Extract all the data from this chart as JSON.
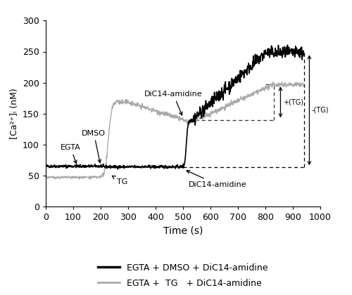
{
  "xlim": [
    0,
    1000
  ],
  "ylim": [
    0,
    300
  ],
  "xticks": [
    0,
    100,
    200,
    300,
    400,
    500,
    600,
    700,
    800,
    900,
    1000
  ],
  "yticks": [
    0,
    50,
    100,
    150,
    200,
    250,
    300
  ],
  "xlabel": "Time (s)",
  "ylabel": "[Ca²⁺]ᵢ (nM)",
  "black_color": "#000000",
  "grey_color": "#aaaaaa",
  "black_baseline": 63,
  "grey_plateau": 140,
  "black_peak": 248,
  "grey_peak": 197,
  "dash_black_x1": 500,
  "dash_black_x2": 940,
  "dash_grey_horiz_x1": 500,
  "dash_grey_horiz_x2": 830,
  "dash_peak_black_x1": 800,
  "dash_peak_black_x2": 940,
  "dash_peak_grey_x1": 800,
  "dash_peak_grey_x2": 830,
  "plus_tg_x": 855,
  "plus_tg_y_lo": 140,
  "plus_tg_y_hi": 197,
  "minus_tg_x": 960,
  "minus_tg_y_lo": 63,
  "minus_tg_y_hi": 248,
  "legend": [
    {
      "label": "EGTA + DMSO + DiC14-amidine",
      "color": "#000000",
      "lw": 2.5
    },
    {
      "label": "EGTA +  TG   + DiC14-amidine",
      "color": "#aaaaaa",
      "lw": 2.0
    }
  ]
}
